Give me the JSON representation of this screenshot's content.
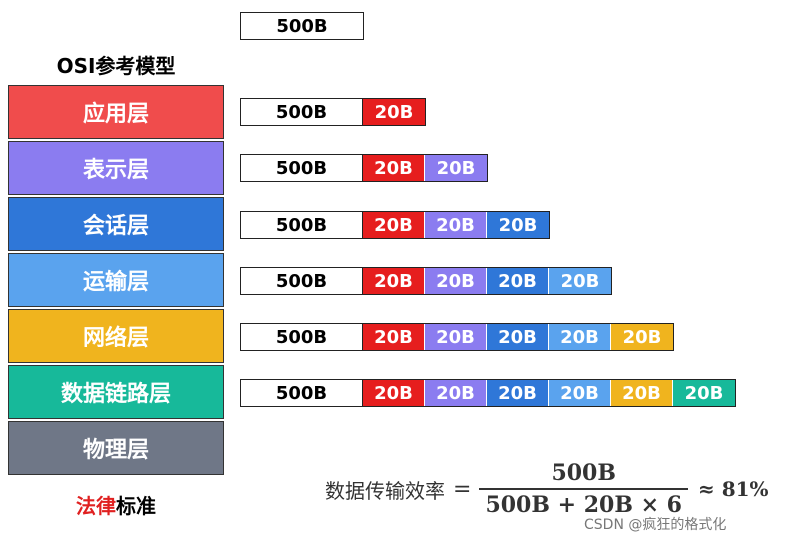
{
  "title": "OSI参考模型",
  "layers": [
    {
      "label": "应用层",
      "color": "#f04c4c"
    },
    {
      "label": "表示层",
      "color": "#8b7cf0"
    },
    {
      "label": "会话层",
      "color": "#2f77d8"
    },
    {
      "label": "运输层",
      "color": "#5aa3ee"
    },
    {
      "label": "网络层",
      "color": "#f0b41e"
    },
    {
      "label": "数据链路层",
      "color": "#17b99a"
    },
    {
      "label": "物理层",
      "color": "#6f7787"
    }
  ],
  "packet": {
    "data_label": "500B",
    "header_label": "20B",
    "header_colors": [
      "#e61e1e",
      "#8b7cf0",
      "#2f77d8",
      "#5aa3ee",
      "#f0b41e",
      "#17b99a"
    ],
    "header_counts": [
      0,
      1,
      2,
      3,
      4,
      5,
      6
    ]
  },
  "footer": {
    "red": "法律",
    "black": "标准"
  },
  "formula": {
    "lhs": "数据传输效率",
    "eq": "=",
    "numerator": "500B",
    "denominator": "500B + 20B × 6",
    "result": "≈ 81%"
  },
  "watermark": "CSDN @疯狂的格式化"
}
